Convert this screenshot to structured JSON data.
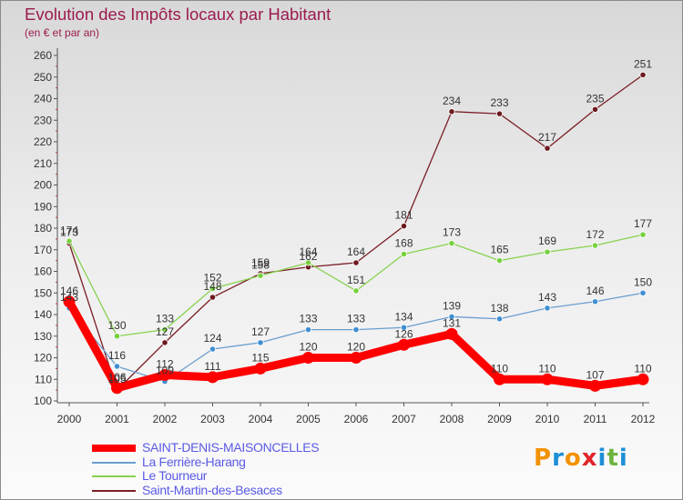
{
  "header": {
    "title": "Evolution des Impôts locaux par Habitant",
    "subtitle": "(en € et par an)"
  },
  "logo": {
    "text": "Proxiti",
    "colors": [
      "#f39200",
      "#1e8fd8",
      "#f39200",
      "#e2242b",
      "#1e8fd8",
      "#6db33f",
      "#1e8fd8"
    ]
  },
  "chart_data": {
    "type": "line",
    "categories": [
      "2000",
      "2001",
      "2002",
      "2003",
      "2004",
      "2005",
      "2006",
      "2007",
      "2008",
      "2009",
      "2010",
      "2011",
      "2012"
    ],
    "ylim": [
      100,
      260
    ],
    "yticks": [
      100,
      110,
      120,
      130,
      140,
      150,
      160,
      170,
      180,
      190,
      200,
      210,
      220,
      230,
      240,
      250,
      260
    ],
    "grid": false,
    "legend_position": "bottom-left",
    "series": [
      {
        "name": "SAINT-DENIS-MAISONCELLES",
        "color": "#ff0000",
        "values": [
          146,
          106,
          112,
          111,
          115,
          120,
          120,
          126,
          131,
          110,
          110,
          107,
          110
        ]
      },
      {
        "name": "La Ferrière-Harang",
        "color": "#6a9ed0",
        "values": [
          143,
          116,
          109,
          124,
          127,
          133,
          133,
          134,
          139,
          138,
          143,
          146,
          150
        ]
      },
      {
        "name": "Le Tourneur",
        "color": "#88d24f",
        "values": [
          174,
          130,
          133,
          152,
          158,
          164,
          151,
          168,
          173,
          165,
          169,
          172,
          177
        ]
      },
      {
        "name": "Saint-Martin-des-Besaces",
        "color": "#7a1e26",
        "values": [
          173,
          105,
          127,
          148,
          159,
          162,
          164,
          181,
          234,
          233,
          217,
          235,
          251
        ]
      }
    ]
  }
}
